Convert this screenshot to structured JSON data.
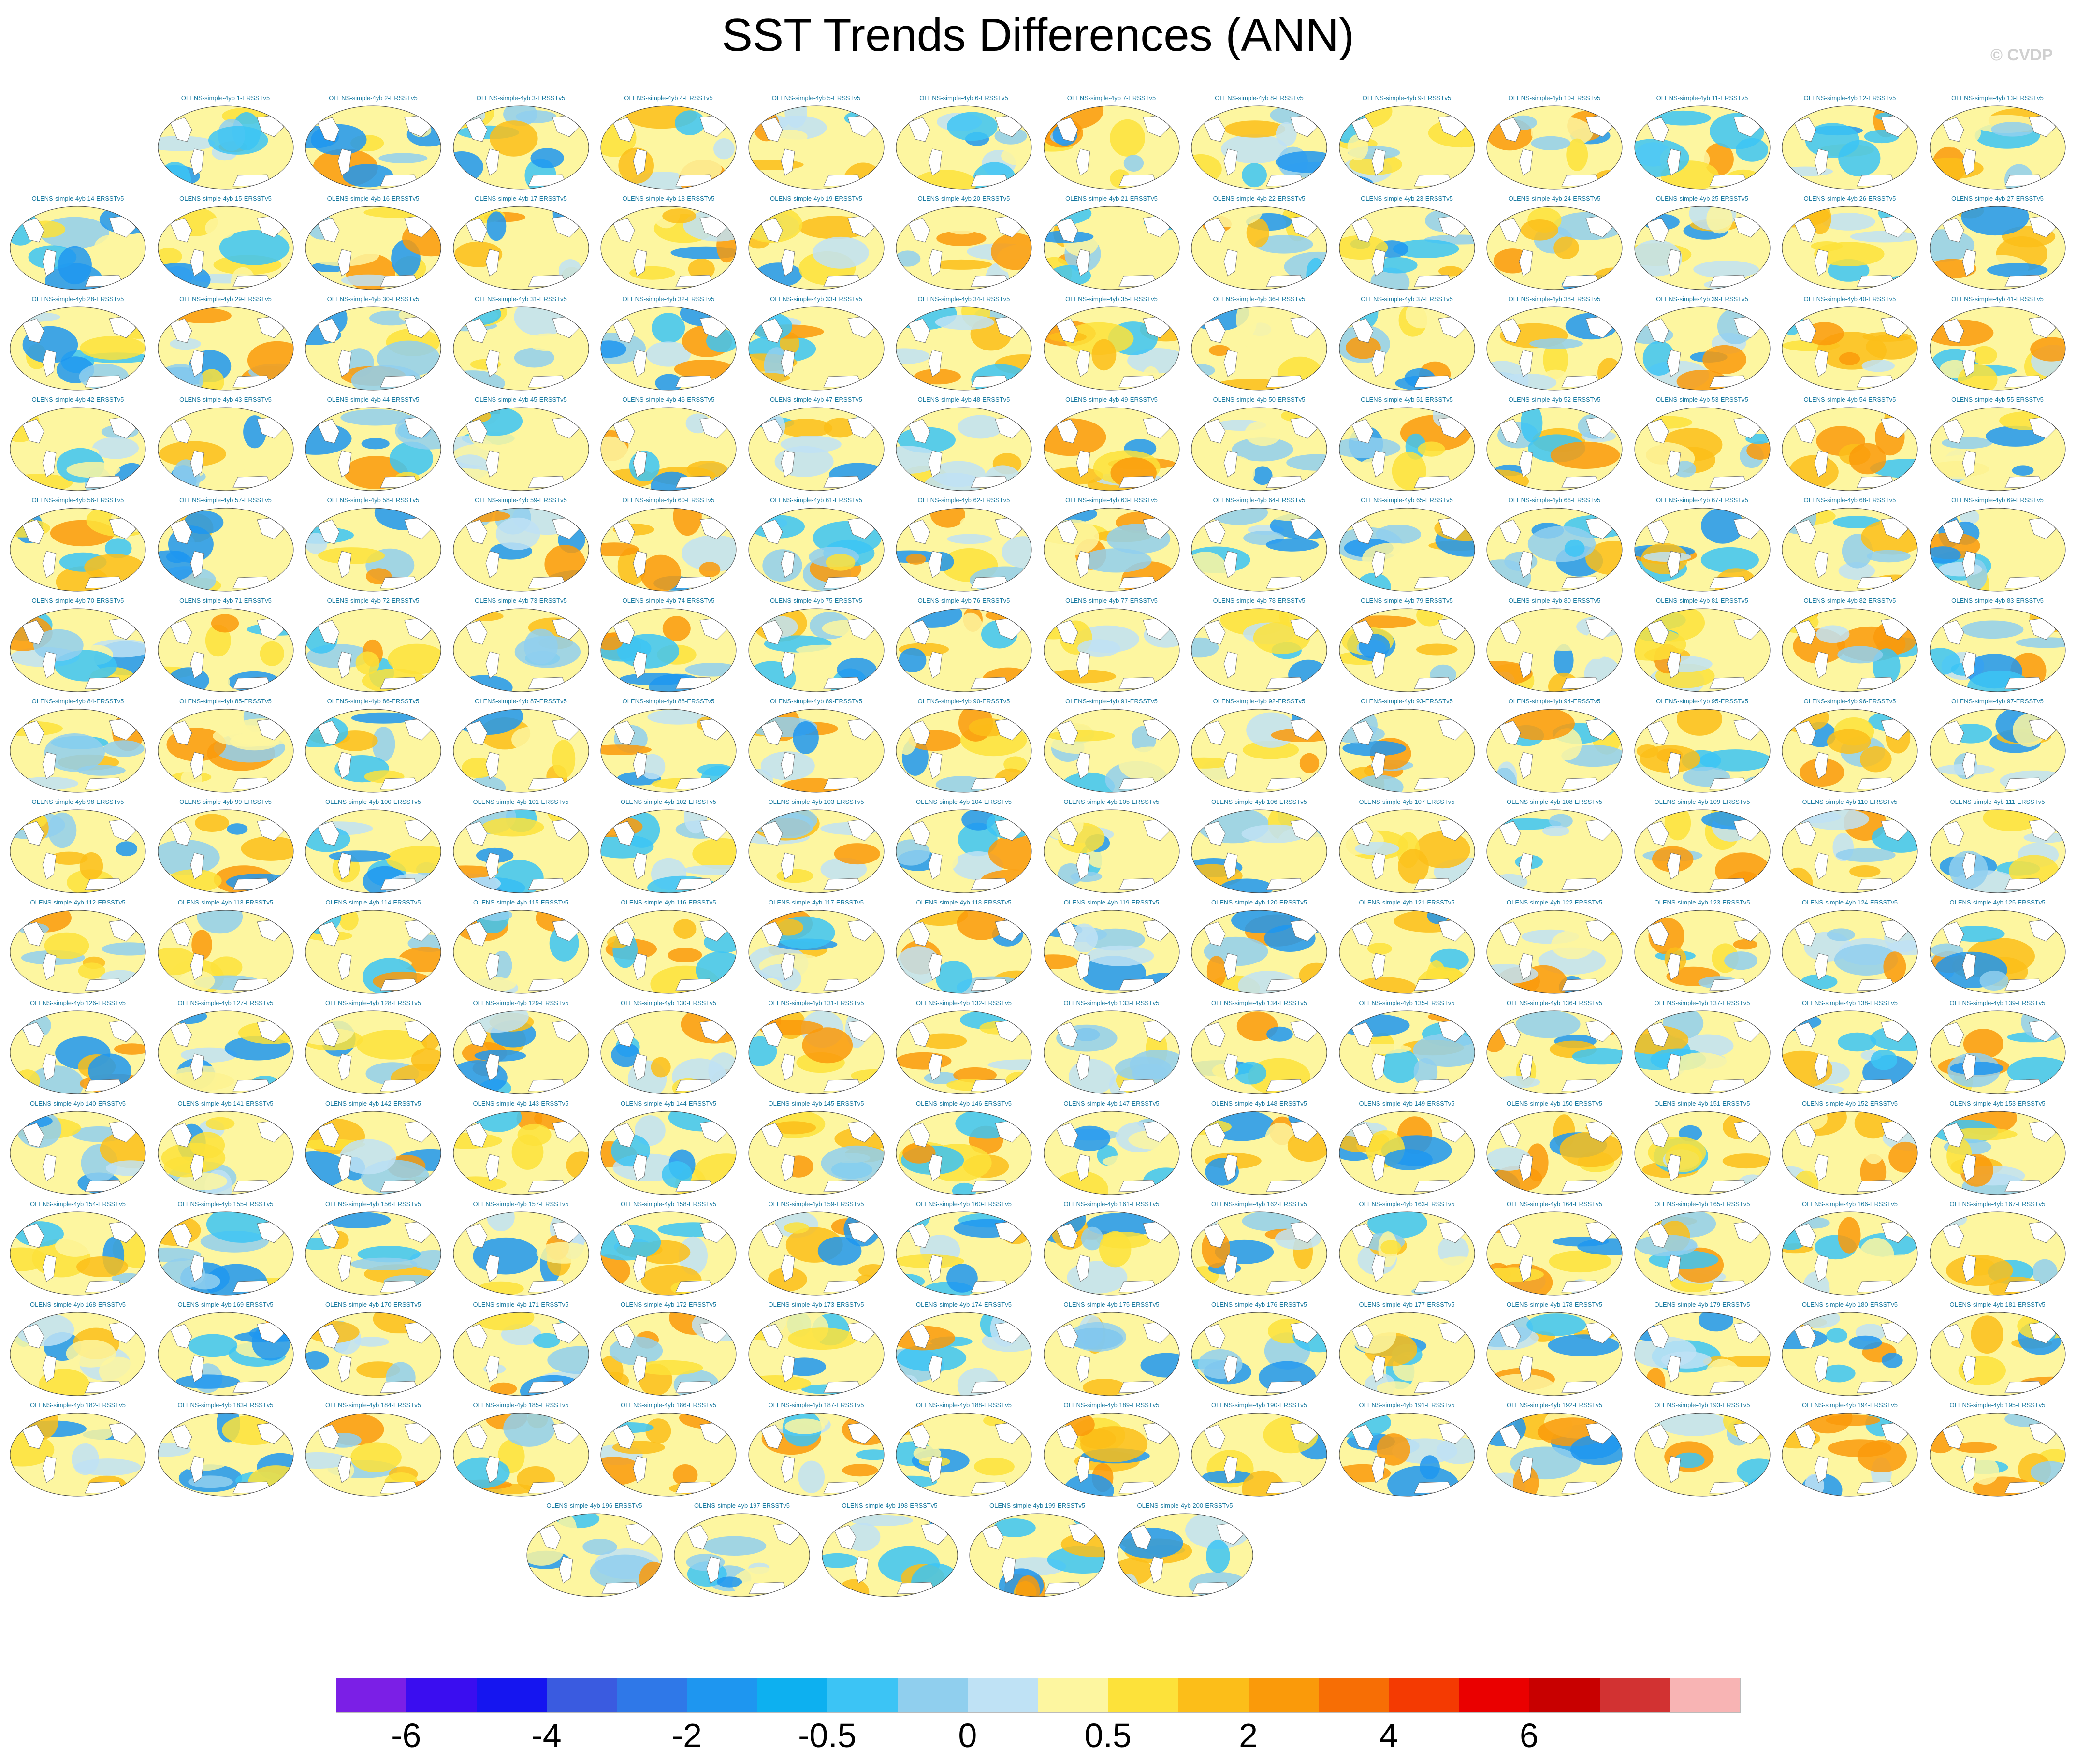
{
  "title": "SST Trends Differences (ANN)",
  "watermark": "© CVDP",
  "panels": {
    "label_prefix": "OLENS-simple-4yb",
    "label_suffix": "ERSSTv5",
    "count": 200,
    "rows": [
      13,
      14,
      14,
      14,
      14,
      14,
      14,
      14,
      14,
      14,
      14,
      14,
      14,
      14,
      5
    ]
  },
  "colorbar": {
    "colors": [
      "#7b1fe6",
      "#3a0df0",
      "#1515f0",
      "#3a5be0",
      "#2f78e8",
      "#1e96f0",
      "#0db0f0",
      "#3cc4f5",
      "#90cfee",
      "#bfe2f5",
      "#fdf6a0",
      "#fde23a",
      "#fcbe19",
      "#fa9a0a",
      "#f76e05",
      "#f43a02",
      "#ea0000",
      "#c80000",
      "#d23232",
      "#f8b4b4"
    ],
    "labels": [
      "-6",
      "-4",
      "-2",
      "-0.5",
      "0",
      "0.5",
      "2",
      "4",
      "6"
    ],
    "label_boundaries": [
      2,
      4,
      6,
      8,
      10,
      12,
      14,
      16,
      18
    ]
  }
}
